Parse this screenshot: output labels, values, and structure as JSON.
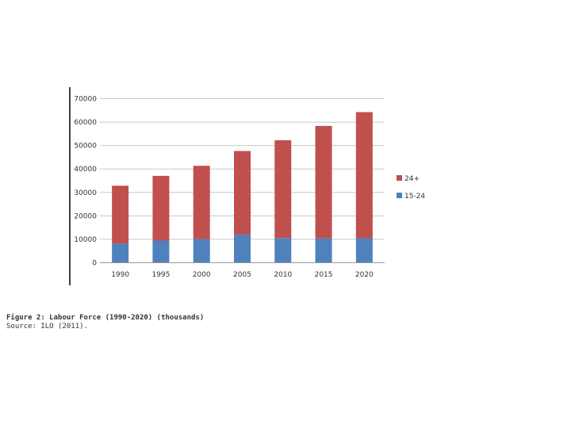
{
  "chart_data": {
    "type": "bar",
    "stacked": true,
    "categories": [
      "1990",
      "1995",
      "2000",
      "2005",
      "2010",
      "2015",
      "2020"
    ],
    "series": [
      {
        "name": "15-24",
        "color": "#4f81bd",
        "values": [
          8000,
          9300,
          10000,
          11800,
          10400,
          10200,
          10300
        ]
      },
      {
        "name": "24+",
        "color": "#c0504d",
        "values": [
          24700,
          27600,
          31200,
          35700,
          41700,
          48000,
          53800
        ]
      }
    ],
    "legend": [
      "24+",
      "15-24"
    ],
    "legend_position": "right",
    "yticks": [
      "0",
      "10000",
      "20000",
      "30000",
      "40000",
      "50000",
      "60000",
      "70000"
    ],
    "ylim": [
      0,
      70000
    ],
    "grid": true
  },
  "caption": {
    "title": "Figure 2: Labour Force (1990-2020) (thousands)",
    "source": "Source: ILO (2011)."
  }
}
